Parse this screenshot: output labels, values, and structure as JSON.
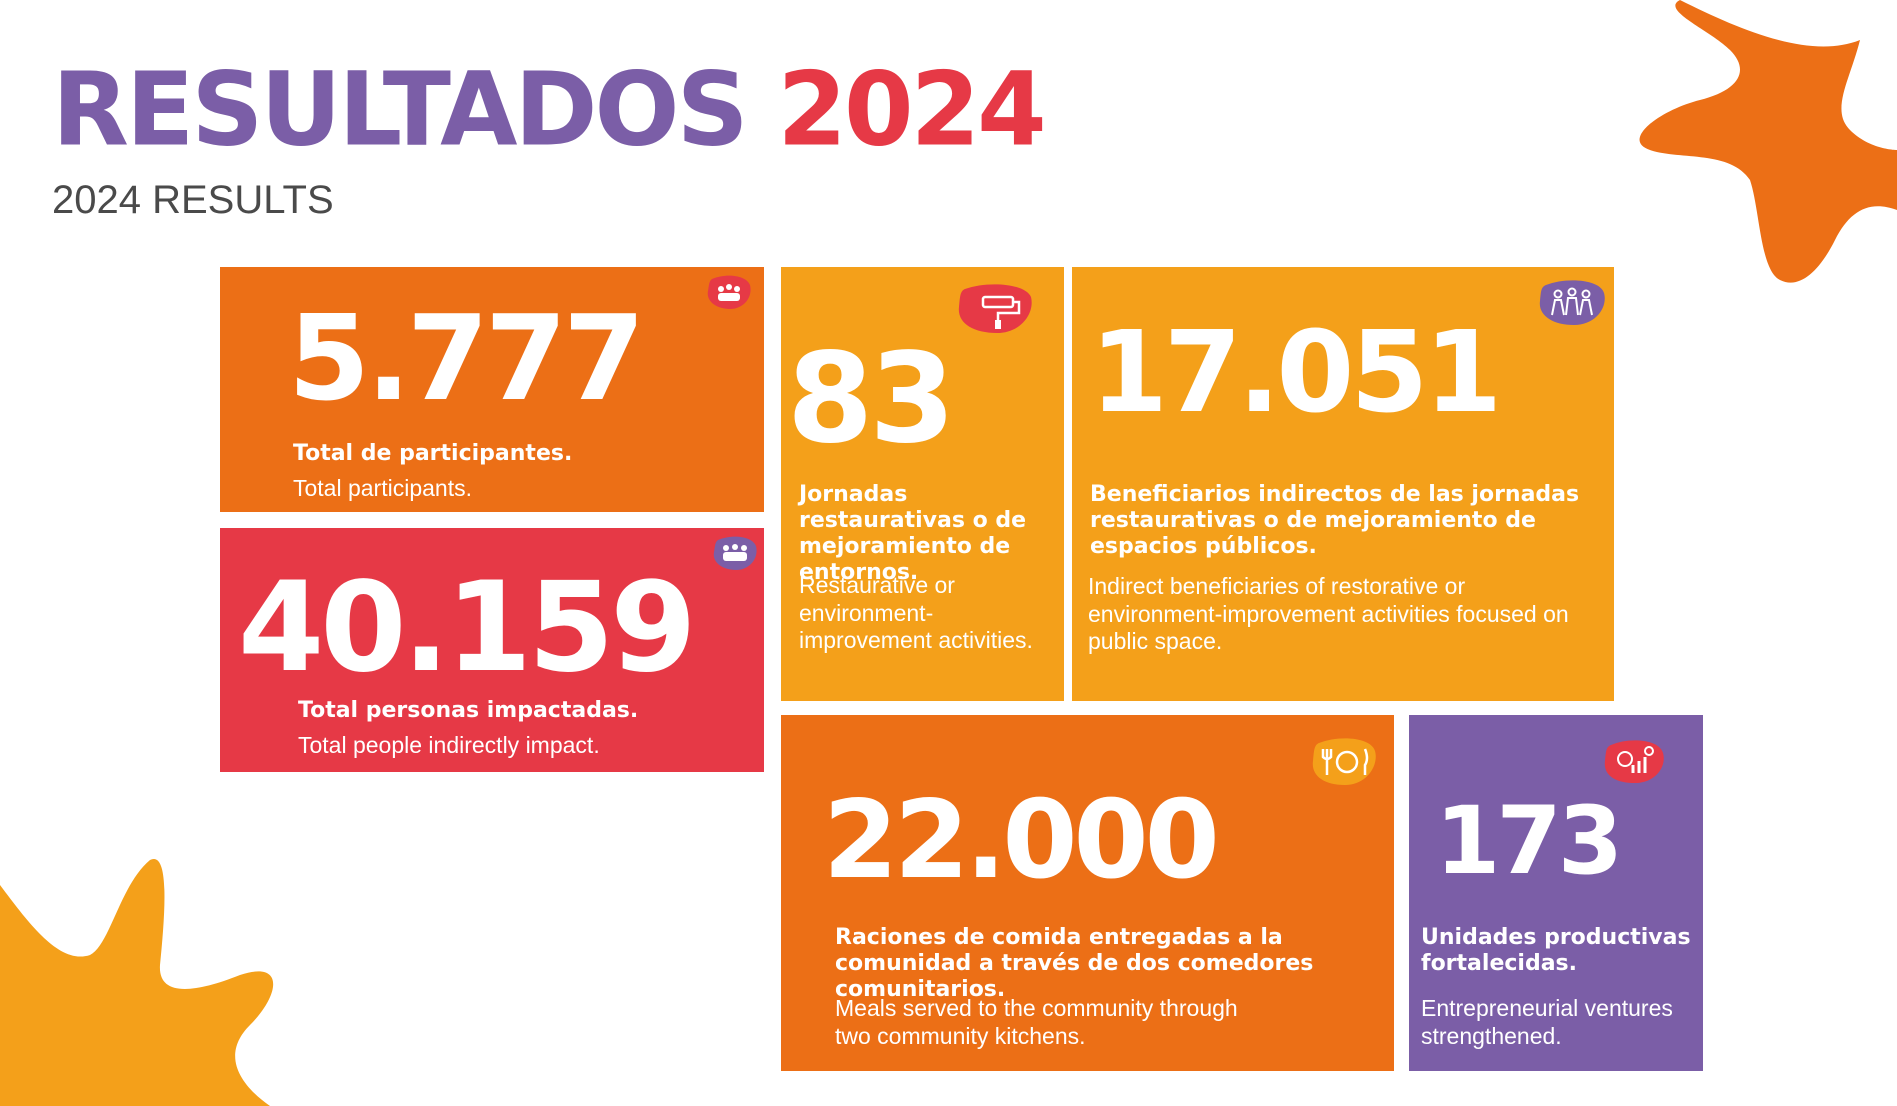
{
  "header": {
    "title_main": "RESULTADOS",
    "title_year": "2024",
    "subtitle": "2024 RESULTS"
  },
  "colors": {
    "purple": "#7b5ea7",
    "red": "#e63946",
    "orange": "#ec6f16",
    "amber": "#f4a01a"
  },
  "cards": [
    {
      "value": "5.777",
      "label": "Total de participantes.",
      "sub": "Total participants.",
      "icon": "people-group-icon"
    },
    {
      "value": "40.159",
      "label": "Total personas impactadas.",
      "sub": "Total people indirectly impact.",
      "icon": "family-icon"
    },
    {
      "value": "83",
      "label": "Jornadas restaurativas o de mejoramiento de entornos.",
      "sub": "Restaurative or environment-improvement activities.",
      "icon": "paint-roller-icon"
    },
    {
      "value": "17.051",
      "label": "Beneficiarios indirectos de las jornadas restaurativas o de mejoramiento de espacios públicos.",
      "sub": "Indirect beneficiaries of restorative or environment-improvement activities focused on public space.",
      "icon": "family-group-icon"
    },
    {
      "value": "22.000",
      "label": "Raciones de comida entregadas a la comunidad a través de dos comedores comunitarios.",
      "sub": "Meals served to the community through two community kitchens.",
      "icon": "plate-cutlery-icon"
    },
    {
      "value": "173",
      "label": "Unidades productivas fortalecidas.",
      "sub": "Entrepreneurial ventures strengthened.",
      "icon": "business-growth-icon"
    }
  ]
}
